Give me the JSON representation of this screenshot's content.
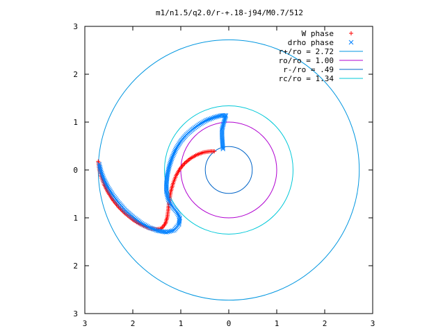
{
  "chart_data": {
    "type": "scatter",
    "title": "m1/n1.5/q2.0/r-+.18-j94/M0.7/512",
    "xlim": [
      -3,
      3
    ],
    "ylim": [
      -3,
      3
    ],
    "x_tick_labels": [
      "3",
      "2",
      "1",
      "0",
      "1",
      "2",
      "3"
    ],
    "y_tick_labels": [
      "3",
      "2",
      "1",
      "0",
      "1",
      "2",
      "3"
    ],
    "grid": false,
    "legend_position": "top-right",
    "point_series": [
      {
        "name": "W phase",
        "marker": "+",
        "color": "#ff0000",
        "points": [
          [
            -2.72,
            0.18
          ],
          [
            -2.7,
            0.02
          ],
          [
            -2.66,
            -0.14
          ],
          [
            -2.6,
            -0.3
          ],
          [
            -2.52,
            -0.46
          ],
          [
            -2.42,
            -0.62
          ],
          [
            -2.3,
            -0.77
          ],
          [
            -2.16,
            -0.91
          ],
          [
            -2.0,
            -1.04
          ],
          [
            -1.84,
            -1.14
          ],
          [
            -1.68,
            -1.21
          ],
          [
            -1.52,
            -1.24
          ],
          [
            -1.4,
            -1.22
          ],
          [
            -1.32,
            -1.12
          ],
          [
            -1.28,
            -0.98
          ],
          [
            -1.26,
            -0.82
          ],
          [
            -1.24,
            -0.64
          ],
          [
            -1.21,
            -0.46
          ],
          [
            -1.16,
            -0.28
          ],
          [
            -1.1,
            -0.12
          ],
          [
            -1.02,
            0.02
          ],
          [
            -0.92,
            0.14
          ],
          [
            -0.8,
            0.24
          ],
          [
            -0.66,
            0.32
          ],
          [
            -0.52,
            0.37
          ],
          [
            -0.38,
            0.39
          ],
          [
            -0.3,
            0.39
          ]
        ]
      },
      {
        "name": "drho phase",
        "marker": "x",
        "color": "#0080ff",
        "points": [
          [
            -2.7,
            0.12
          ],
          [
            -2.66,
            -0.04
          ],
          [
            -2.6,
            -0.2
          ],
          [
            -2.52,
            -0.36
          ],
          [
            -2.42,
            -0.52
          ],
          [
            -2.3,
            -0.68
          ],
          [
            -2.16,
            -0.84
          ],
          [
            -2.0,
            -0.98
          ],
          [
            -1.84,
            -1.1
          ],
          [
            -1.66,
            -1.2
          ],
          [
            -1.48,
            -1.27
          ],
          [
            -1.3,
            -1.3
          ],
          [
            -1.14,
            -1.26
          ],
          [
            -1.04,
            -1.14
          ],
          [
            -1.02,
            -1.0
          ],
          [
            -1.08,
            -0.88
          ],
          [
            -1.18,
            -0.76
          ],
          [
            -1.26,
            -0.62
          ],
          [
            -1.3,
            -0.46
          ],
          [
            -1.3,
            -0.28
          ],
          [
            -1.28,
            -0.1
          ],
          [
            -1.24,
            0.08
          ],
          [
            -1.18,
            0.26
          ],
          [
            -1.1,
            0.44
          ],
          [
            -1.0,
            0.6
          ],
          [
            -0.88,
            0.74
          ],
          [
            -0.74,
            0.86
          ],
          [
            -0.6,
            0.96
          ],
          [
            -0.46,
            1.04
          ],
          [
            -0.3,
            1.1
          ],
          [
            -0.15,
            1.14
          ],
          [
            -0.06,
            1.14
          ],
          [
            -0.1,
            1.0
          ],
          [
            -0.14,
            0.85
          ],
          [
            -0.14,
            0.7
          ],
          [
            -0.13,
            0.55
          ],
          [
            -0.12,
            0.44
          ]
        ]
      }
    ],
    "circle_series": [
      {
        "name": "r+/ro = 2.72",
        "color": "#0096e0",
        "radius": 2.72
      },
      {
        "name": "ro/ro = 1.00",
        "color": "#b000d0",
        "radius": 1.0
      },
      {
        "name": "r-/ro = .49",
        "color": "#0064c8",
        "radius": 0.49
      },
      {
        "name": "rc/ro = 1.34",
        "color": "#00c8d8",
        "radius": 1.34
      }
    ]
  }
}
